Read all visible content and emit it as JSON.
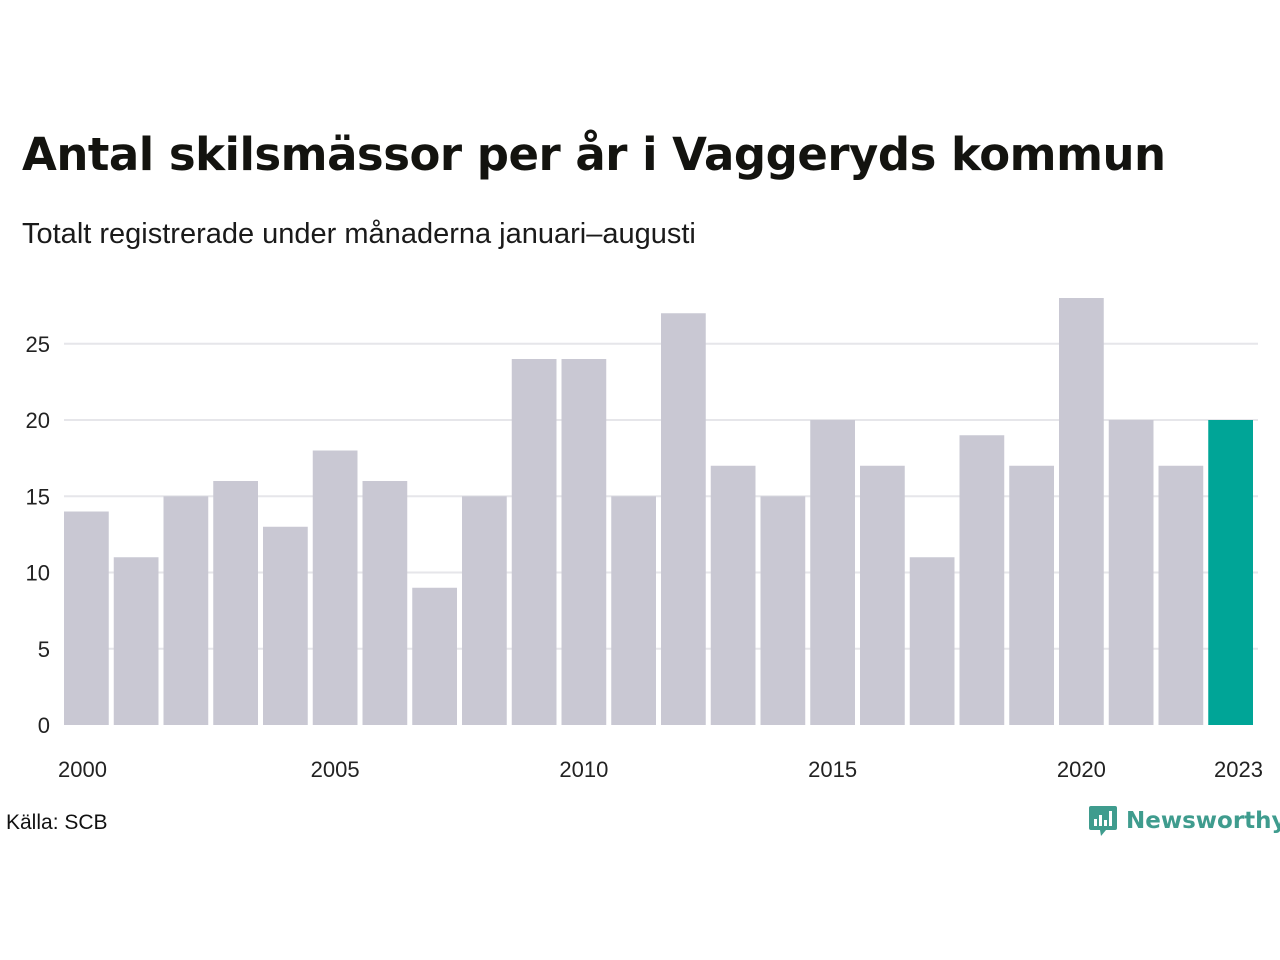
{
  "header": {
    "title": "Antal skilsmässor per år i Vaggeryds kommun",
    "subtitle": "Totalt registrerade under månaderna januari–augusti"
  },
  "footer": {
    "source": "Källa: SCB",
    "brand_name": "Newsworthy",
    "brand_icon": "newsworthy-logo-icon",
    "brand_color": "#3f9c8e"
  },
  "chart_data": {
    "type": "bar",
    "categories": [
      2000,
      2001,
      2002,
      2003,
      2004,
      2005,
      2006,
      2007,
      2008,
      2009,
      2010,
      2011,
      2012,
      2013,
      2014,
      2015,
      2016,
      2017,
      2018,
      2019,
      2020,
      2021,
      2022,
      2023
    ],
    "values": [
      14,
      11,
      15,
      16,
      13,
      18,
      16,
      9,
      15,
      24,
      24,
      15,
      27,
      17,
      15,
      20,
      17,
      11,
      19,
      17,
      28,
      20,
      17,
      20
    ],
    "x_tick_labels": [
      "2000",
      "2005",
      "2010",
      "2015",
      "2020",
      "2023"
    ],
    "y_ticks": [
      0,
      5,
      10,
      15,
      20,
      25
    ],
    "ylim": [
      0,
      28
    ],
    "grid": "horizontal",
    "highlight_category": 2023,
    "colors": {
      "bar": "#c9c8d3",
      "highlight": "#00a597",
      "grid": "#e6e6ea"
    },
    "xlabel": "",
    "ylabel": ""
  }
}
